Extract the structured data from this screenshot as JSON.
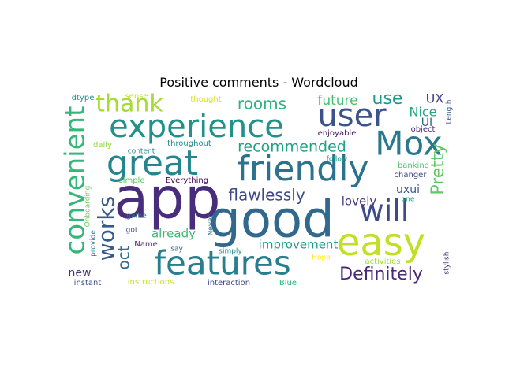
{
  "chart_data": {
    "type": "wordcloud",
    "title": "Positive comments - Wordcloud",
    "colormap": "viridis",
    "background": "#ffffff",
    "words": [
      {
        "text": "app",
        "color": "#472d7b"
      },
      {
        "text": "good",
        "color": "#31688e"
      },
      {
        "text": "friendly",
        "color": "#2c728e"
      },
      {
        "text": "experience",
        "color": "#21918c"
      },
      {
        "text": "features",
        "color": "#277f8e"
      },
      {
        "text": "easy",
        "color": "#c2df23"
      },
      {
        "text": "great",
        "color": "#25858e"
      },
      {
        "text": "will",
        "color": "#3e4a89"
      },
      {
        "text": "user",
        "color": "#3b528b"
      },
      {
        "text": "Mox",
        "color": "#2a788e"
      },
      {
        "text": "convenient",
        "color": "#35b779"
      },
      {
        "text": "thank",
        "color": "#a5db36"
      },
      {
        "text": "works",
        "color": "#375a8c"
      },
      {
        "text": "Definitely",
        "color": "#482878"
      },
      {
        "text": "Pretty",
        "color": "#5ec962"
      },
      {
        "text": "flawlessly",
        "color": "#3e4989"
      },
      {
        "text": "rooms",
        "color": "#2db27d"
      },
      {
        "text": "recommended",
        "color": "#1fa187"
      },
      {
        "text": "use",
        "color": "#1f988b"
      },
      {
        "text": "future",
        "color": "#44bf70"
      },
      {
        "text": "oct",
        "color": "#2f6c8e"
      },
      {
        "text": "lovely",
        "color": "#443983"
      },
      {
        "text": "already",
        "color": "#3aba76"
      },
      {
        "text": "improvement",
        "color": "#1e9c89"
      },
      {
        "text": "uxui",
        "color": "#3b528b"
      },
      {
        "text": "UX",
        "color": "#414487"
      },
      {
        "text": "Nice",
        "color": "#22a785"
      },
      {
        "text": "UI",
        "color": "#365d8d"
      },
      {
        "text": "new",
        "color": "#46327e"
      },
      {
        "text": "Length",
        "color": "#3b528b"
      },
      {
        "text": "dtype",
        "color": "#20928c"
      },
      {
        "text": "sense",
        "color": "#bddf26"
      },
      {
        "text": "thought",
        "color": "#dde318"
      },
      {
        "text": "object",
        "color": "#482475"
      },
      {
        "text": "enjoyable",
        "color": "#48186a"
      },
      {
        "text": "daily",
        "color": "#8fd744"
      },
      {
        "text": "content",
        "color": "#25838e"
      },
      {
        "text": "throughout",
        "color": "#228c8d"
      },
      {
        "text": "follow",
        "color": "#1f988b"
      },
      {
        "text": "banking",
        "color": "#50c46a"
      },
      {
        "text": "changer",
        "color": "#3f4788"
      },
      {
        "text": "Everything",
        "color": "#440154"
      },
      {
        "text": "simple",
        "color": "#5cc863"
      },
      {
        "text": "Onboarding",
        "color": "#6ccd5a"
      },
      {
        "text": "game",
        "color": "#2c738e"
      },
      {
        "text": "got",
        "color": "#39568c"
      },
      {
        "text": "one",
        "color": "#1fa088"
      },
      {
        "text": "Never",
        "color": "#2e6f8e"
      },
      {
        "text": "provide",
        "color": "#2a788e"
      },
      {
        "text": "Name",
        "color": "#481f70"
      },
      {
        "text": "say",
        "color": "#34618d"
      },
      {
        "text": "simply",
        "color": "#23898e"
      },
      {
        "text": "Hope",
        "color": "#fde725"
      },
      {
        "text": "activities",
        "color": "#a2da37"
      },
      {
        "text": "stylish",
        "color": "#472f7d"
      },
      {
        "text": "instructions",
        "color": "#c8e020"
      },
      {
        "text": "interaction",
        "color": "#3e4989"
      },
      {
        "text": "Blue",
        "color": "#2fb47c"
      },
      {
        "text": "instant",
        "color": "#3d4d8a"
      }
    ]
  }
}
